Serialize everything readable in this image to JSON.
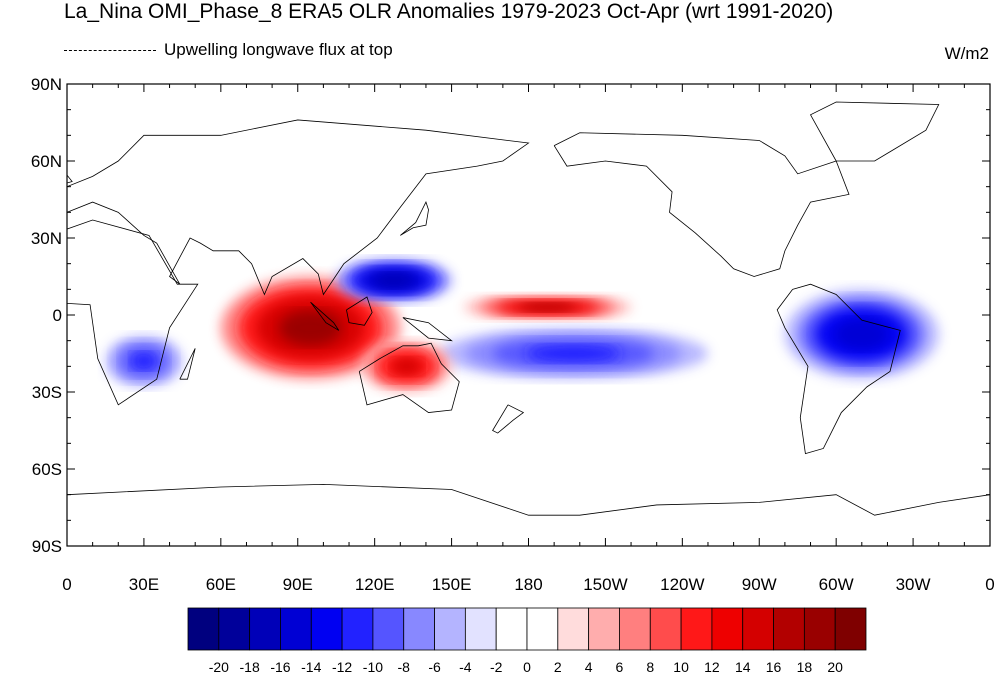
{
  "title": "La_Nina OMI_Phase_8 ERA5 OLR Anomalies 1979-2023 Oct-Apr (wrt 1991-2020)",
  "subtitle": "Upwelling longwave flux at top",
  "units": "W/m2",
  "lat_labels": [
    "90N",
    "60N",
    "30N",
    "0",
    "30S",
    "60S",
    "90S"
  ],
  "lon_labels": [
    "0",
    "30E",
    "60E",
    "90E",
    "120E",
    "150E",
    "180",
    "150W",
    "120W",
    "90W",
    "60W",
    "30W",
    "0"
  ],
  "colorbar": {
    "labels": [
      "-20",
      "-18",
      "-16",
      "-14",
      "-12",
      "-10",
      "-8",
      "-6",
      "-4",
      "-2",
      "0",
      "2",
      "4",
      "6",
      "8",
      "10",
      "12",
      "14",
      "16",
      "18",
      "20"
    ],
    "colors": [
      "#00007f",
      "#00009a",
      "#0000b8",
      "#0000d4",
      "#0000f2",
      "#2222ff",
      "#5555ff",
      "#8888ff",
      "#b4b4ff",
      "#e2e2ff",
      "#ffffff",
      "#ffffff",
      "#ffdcdc",
      "#ffadad",
      "#ff7f7f",
      "#ff4c4c",
      "#ff1818",
      "#ee0000",
      "#d40000",
      "#b20000",
      "#990000",
      "#7f0000"
    ]
  },
  "anomaly_features": [
    {
      "name": "indian-ocean-positive",
      "lon": [
        60,
        130
      ],
      "lat": [
        -25,
        15
      ],
      "value": 18
    },
    {
      "name": "central-pacific-positive",
      "lon": [
        155,
        220
      ],
      "lat": [
        -2,
        8
      ],
      "value": 16
    },
    {
      "name": "maritime-continent-negative",
      "lon": [
        105,
        150
      ],
      "lat": [
        5,
        22
      ],
      "value": -18
    },
    {
      "name": "south-pacific-negative",
      "lon": [
        145,
        250
      ],
      "lat": [
        -25,
        -5
      ],
      "value": -12
    },
    {
      "name": "south-america-negative",
      "lon": [
        280,
        340
      ],
      "lat": [
        -25,
        10
      ],
      "value": -16
    },
    {
      "name": "southern-africa-negative",
      "lon": [
        15,
        45
      ],
      "lat": [
        -28,
        -8
      ],
      "value": -12
    },
    {
      "name": "australia-positive",
      "lon": [
        115,
        150
      ],
      "lat": [
        -30,
        -10
      ],
      "value": 14
    }
  ]
}
